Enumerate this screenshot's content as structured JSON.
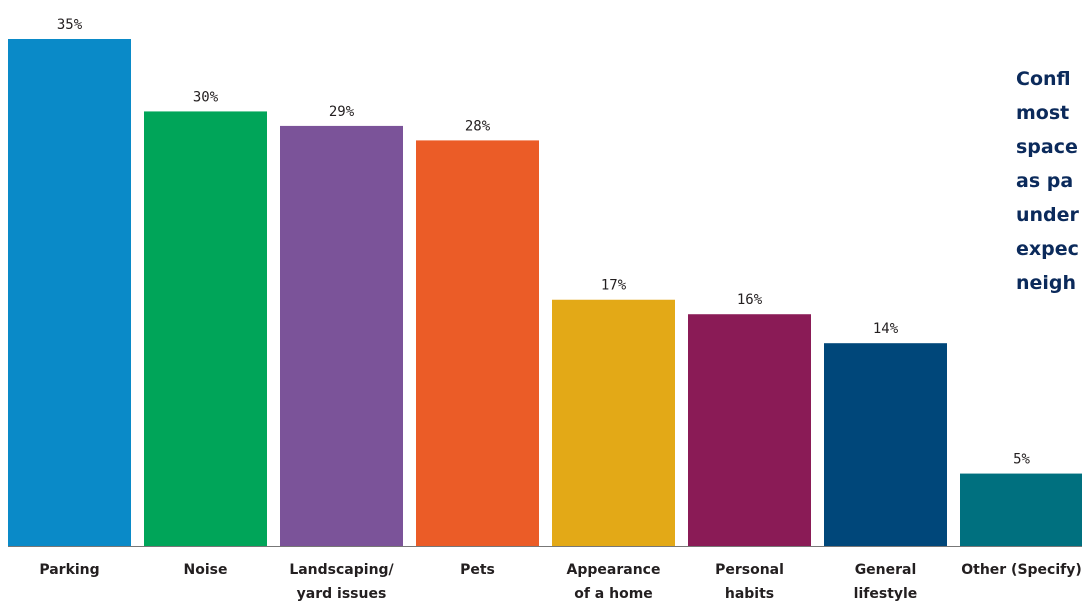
{
  "chart_data": {
    "type": "bar",
    "categories": [
      [
        "Parking"
      ],
      [
        "Noise"
      ],
      [
        "Landscaping/",
        "yard issues"
      ],
      [
        "Pets"
      ],
      [
        "Appearance",
        "of a home"
      ],
      [
        "Personal",
        "habits"
      ],
      [
        "General",
        "lifestyle"
      ],
      [
        "Other (Specify)"
      ]
    ],
    "values": [
      35,
      30,
      29,
      28,
      17,
      16,
      14,
      5
    ],
    "value_labels": [
      "35%",
      "30%",
      "29%",
      "28%",
      "17%",
      "16%",
      "14%",
      "5%"
    ],
    "colors": [
      "#0a8ac8",
      "#00a559",
      "#7b5399",
      "#eb5c27",
      "#e3a917",
      "#8a1b56",
      "#00477a",
      "#00707f"
    ],
    "ylim": [
      0,
      35
    ],
    "grid": false,
    "legend": "none"
  },
  "callout": {
    "lines": [
      "Confl",
      "most",
      "space",
      "as pa",
      "under",
      "expec",
      "neigh"
    ]
  }
}
